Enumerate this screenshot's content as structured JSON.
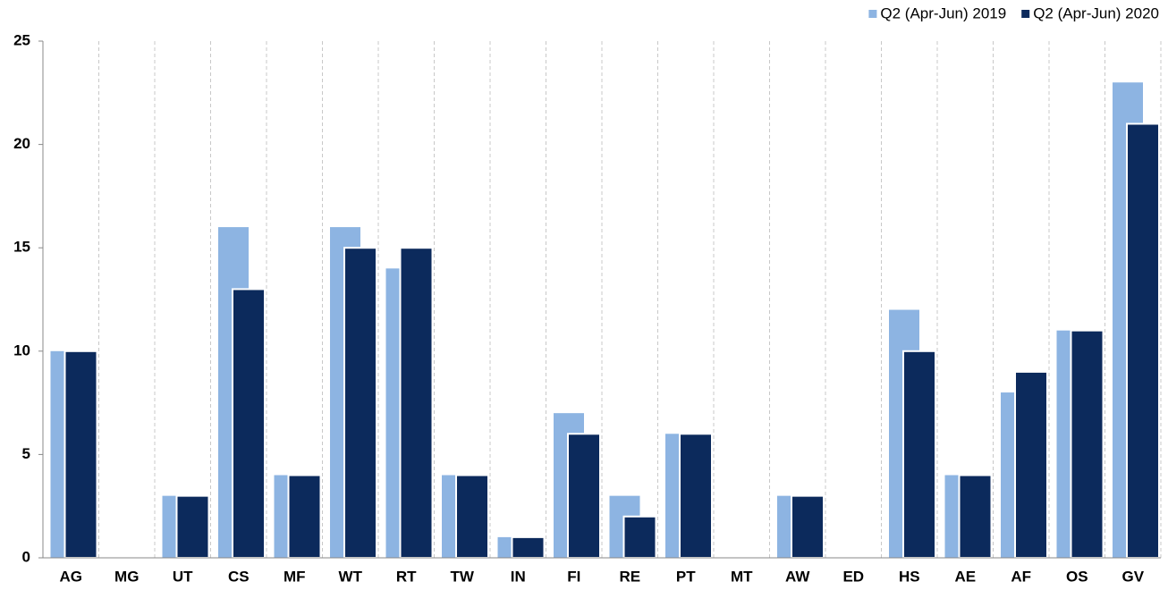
{
  "chart_data": {
    "type": "bar",
    "categories": [
      "AG",
      "MG",
      "UT",
      "CS",
      "MF",
      "WT",
      "RT",
      "TW",
      "IN",
      "FI",
      "RE",
      "PT",
      "MT",
      "AW",
      "ED",
      "HS",
      "AE",
      "AF",
      "OS",
      "GV"
    ],
    "series": [
      {
        "name": "Q2 (Apr-Jun) 2019",
        "color": "#8db4e2",
        "values": [
          10,
          0,
          3,
          16,
          4,
          16,
          14,
          4,
          1,
          7,
          3,
          6,
          0,
          3,
          0,
          12,
          4,
          8,
          11,
          23
        ]
      },
      {
        "name": "Q2 (Apr-Jun) 2020",
        "color": "#0c2a5c",
        "values": [
          10,
          0,
          3,
          13,
          4,
          15,
          15,
          4,
          1,
          6,
          2,
          6,
          0,
          3,
          0,
          10,
          4,
          9,
          11,
          21
        ]
      }
    ],
    "ylim": [
      0,
      25
    ],
    "yticks": [
      0,
      5,
      10,
      15,
      20,
      25
    ],
    "grid": true,
    "legend": "top-right"
  }
}
